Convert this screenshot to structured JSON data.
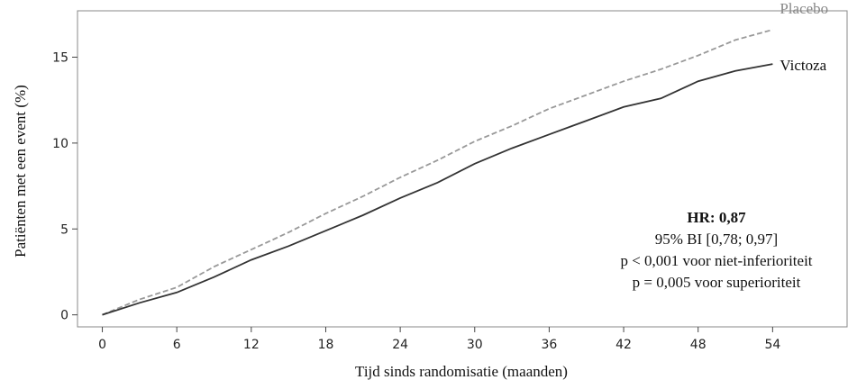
{
  "chart_data": {
    "type": "line",
    "x_label": "Tijd sinds randomisatie (maanden)",
    "y_label": "Patiënten met een event (%)",
    "x": [
      0,
      3,
      6,
      9,
      12,
      15,
      18,
      21,
      24,
      27,
      30,
      33,
      36,
      39,
      42,
      45,
      48,
      51,
      54
    ],
    "series": [
      {
        "name": "Placebo",
        "color": "#999999",
        "dash": true,
        "values": [
          0,
          0.9,
          1.6,
          2.8,
          3.8,
          4.8,
          5.9,
          6.9,
          8.0,
          9.0,
          10.1,
          11.0,
          12.0,
          12.8,
          13.6,
          14.3,
          15.1,
          16.0,
          16.6
        ]
      },
      {
        "name": "Victoza",
        "color": "#333333",
        "dash": false,
        "values": [
          0,
          0.7,
          1.3,
          2.2,
          3.2,
          4.0,
          4.9,
          5.8,
          6.8,
          7.7,
          8.8,
          9.7,
          10.5,
          11.3,
          12.1,
          12.6,
          13.6,
          14.2,
          14.6
        ]
      }
    ],
    "xlim": [
      -2,
      60
    ],
    "ylim": [
      -0.7,
      17.7
    ],
    "xticks": [
      0,
      6,
      12,
      18,
      24,
      30,
      36,
      42,
      48,
      54
    ],
    "yticks": [
      0,
      5,
      10,
      15
    ],
    "annotations": [
      "HR: 0,87",
      "95% BI [0,78; 0,97]",
      "p < 0,001 voor niet-inferioriteit",
      "p = 0,005 voor superioriteit"
    ]
  }
}
